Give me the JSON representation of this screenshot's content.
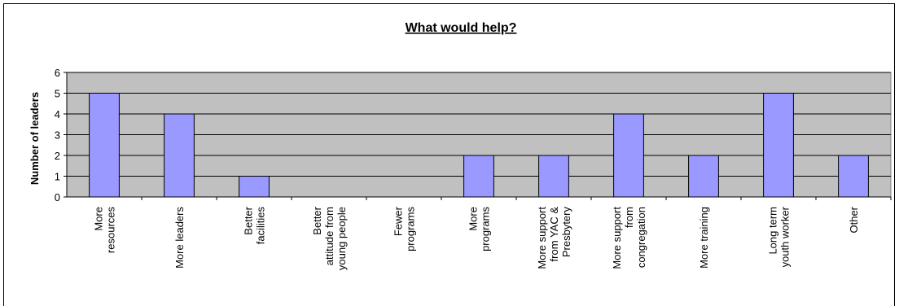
{
  "chart_data": {
    "type": "bar",
    "title": "What would help?",
    "xlabel": "",
    "ylabel": "Number of leaders",
    "ylim": [
      0,
      6
    ],
    "yticks": [
      0,
      1,
      2,
      3,
      4,
      5,
      6
    ],
    "grid": true,
    "legend": "none",
    "categories": [
      [
        "More",
        "resources"
      ],
      [
        "More leaders"
      ],
      [
        "Better",
        "facilities"
      ],
      [
        "Better",
        "attitude from",
        "young people"
      ],
      [
        "Fewer",
        "programs"
      ],
      [
        "More",
        "programs"
      ],
      [
        "More support",
        "from YAC &",
        "Presbytery"
      ],
      [
        "More support",
        "from",
        "congregation"
      ],
      [
        "More training"
      ],
      [
        "Long term",
        "youth worker"
      ],
      [
        "Other"
      ]
    ],
    "values": [
      5,
      4,
      1,
      0,
      0,
      2,
      2,
      4,
      2,
      5,
      2
    ],
    "colors": {
      "bar": "#9999ff",
      "plot_bg": "#c0c0c0",
      "grid": "#000000"
    }
  }
}
